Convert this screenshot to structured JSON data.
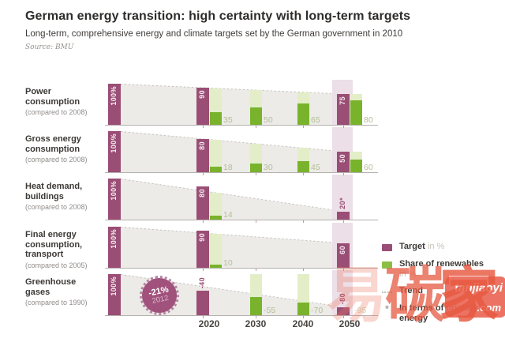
{
  "header": {
    "title": "German energy transition: high certainty with long-term targets",
    "subtitle": "Long-term, comprehensive energy and climate targets set by the German government in 2010",
    "source": "Source: BMU"
  },
  "chart_data": {
    "type": "bar",
    "unit": "%",
    "ylim": [
      0,
      100
    ],
    "axis_years": [
      "2020",
      "2030",
      "2040",
      "2050"
    ],
    "base_bar": {
      "value": 100,
      "label": "100%"
    },
    "rows": [
      {
        "label": "Power consumption",
        "compare": "(compared to 2008)",
        "mode": "share",
        "trend_end": 75,
        "bars": [
          {
            "decade": "2020",
            "target": 90,
            "target_label": "90",
            "label_pos": "inside",
            "renewable": 35,
            "renewable_label": "35"
          },
          {
            "decade": "2030",
            "renewable": 50,
            "renewable_label": "50"
          },
          {
            "decade": "2040",
            "renewable": 65,
            "renewable_label": "65"
          },
          {
            "decade": "2050",
            "target": 75,
            "target_label": "75",
            "label_pos": "inside",
            "renewable": 80,
            "renewable_label": "80"
          }
        ]
      },
      {
        "label": "Gross energy consumption",
        "compare": "(compared to 2008)",
        "mode": "share",
        "trend_end": 50,
        "bars": [
          {
            "decade": "2020",
            "target": 80,
            "target_label": "80",
            "label_pos": "inside",
            "renewable": 18,
            "renewable_label": "18"
          },
          {
            "decade": "2030",
            "renewable": 30,
            "renewable_label": "30"
          },
          {
            "decade": "2040",
            "renewable": 45,
            "renewable_label": "45"
          },
          {
            "decade": "2050",
            "target": 50,
            "target_label": "50",
            "label_pos": "inside",
            "renewable": 60,
            "renewable_label": "60"
          }
        ]
      },
      {
        "label": "Heat demand, buildings",
        "compare": "(compared to 2008)",
        "mode": "share",
        "trend_end": 20,
        "bars": [
          {
            "decade": "2020",
            "target": 80,
            "target_label": "80",
            "label_pos": "inside",
            "renewable": 14,
            "renewable_label": "14"
          },
          {
            "decade": "2050",
            "target": 20,
            "target_label": "20*",
            "label_pos": "above"
          }
        ]
      },
      {
        "label": "Final energy consumption, transport",
        "compare": "(compared to 2005)",
        "mode": "share",
        "trend_end": 60,
        "bars": [
          {
            "decade": "2020",
            "target": 90,
            "target_label": "90",
            "label_pos": "inside",
            "renewable": 10,
            "renewable_label": "10"
          },
          {
            "decade": "2050",
            "target": 60,
            "target_label": "60",
            "label_pos": "inside"
          }
        ]
      },
      {
        "label": "Greenhouse gases",
        "compare": "(compared to 1990)",
        "mode": "reduction",
        "trend_end": 20,
        "badge": {
          "line1": "-21%",
          "line2": "2012"
        },
        "bars": [
          {
            "decade": "2020",
            "target": -40,
            "target_label": "-40",
            "label_pos": "above"
          },
          {
            "decade": "2030",
            "renewable": -55,
            "renewable_label": "-55"
          },
          {
            "decade": "2040",
            "renewable": -70,
            "renewable_label": "-70"
          },
          {
            "decade": "2050",
            "target": -80,
            "target_label": "-80",
            "label_pos": "above",
            "extra_label": "-95"
          }
        ]
      }
    ]
  },
  "legend": {
    "items": [
      {
        "type": "target",
        "label": "Target",
        "suffix": " in %"
      },
      {
        "type": "renewables",
        "label": "Share of renewables",
        "suffix": " in %"
      },
      {
        "type": "trend",
        "label": "Trend",
        "suffix": ""
      },
      {
        "type": "note",
        "label": "In terms of primary energy",
        "suffix": ""
      }
    ],
    "note_icon": "*"
  },
  "watermark": {
    "char1": "易",
    "char2": "碳",
    "char3": "家",
    "brand": "tanjiaoyi",
    "domain": ".com"
  },
  "colors": {
    "target_purple": "#9a4e75",
    "renewable_green": "#79b32c",
    "renewable_light": "#e3eec8",
    "trend_grey": "#ecebe8",
    "band_2050": "#ecdfe8",
    "watermark_red": "#e65840"
  }
}
